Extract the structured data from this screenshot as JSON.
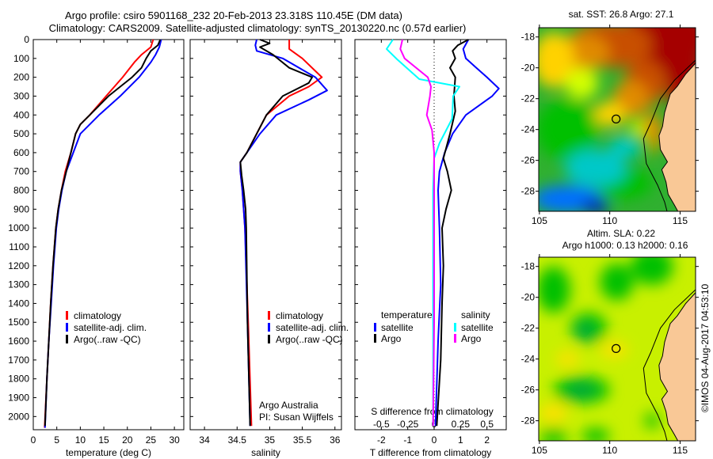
{
  "header": {
    "line1": "Argo profile: csiro 5901168_232 20-Feb-2013 23.318S 110.45E (DM data)",
    "line2": "Climatology: CARS2009. Satellite-adjusted climatology: synTS_20130220.nc (0.57d earlier)"
  },
  "colors": {
    "climatology": "#ff0000",
    "satellite": "#0000ff",
    "argo": "#000000",
    "sal_satellite": "#00ffff",
    "sal_argo": "#ff00ff",
    "land": "#f9c896"
  },
  "chart_data": [
    {
      "type": "line",
      "name": "temperature-profile",
      "xlabel": "temperature (deg C)",
      "ylabel": "",
      "xlim": [
        0,
        32
      ],
      "ylim": [
        2070,
        0
      ],
      "xticks": [
        0,
        5,
        10,
        15,
        20,
        25,
        30
      ],
      "yticks": [
        0,
        100,
        200,
        300,
        400,
        500,
        600,
        700,
        800,
        900,
        1000,
        1100,
        1200,
        1300,
        1400,
        1500,
        1600,
        1700,
        1800,
        1900,
        2000
      ],
      "legend": [
        "climatology",
        "satellite-adj. clim.",
        "Argo(..raw -QC)"
      ],
      "series": [
        {
          "name": "climatology",
          "color": "#ff0000",
          "points": [
            [
              0,
              25.5
            ],
            [
              40,
              25
            ],
            [
              80,
              23
            ],
            [
              120,
              21.5
            ],
            [
              200,
              19
            ],
            [
              300,
              15.5
            ],
            [
              400,
              12
            ],
            [
              450,
              10
            ],
            [
              500,
              9
            ],
            [
              600,
              8
            ],
            [
              700,
              6.8
            ],
            [
              800,
              6
            ],
            [
              900,
              5.3
            ],
            [
              1000,
              4.8
            ],
            [
              1200,
              4.2
            ],
            [
              1400,
              3.7
            ],
            [
              1600,
              3.3
            ],
            [
              1800,
              2.9
            ],
            [
              2060,
              2.4
            ]
          ]
        },
        {
          "name": "satellite-adj. clim.",
          "color": "#0000ff",
          "points": [
            [
              0,
              27.2
            ],
            [
              40,
              26.8
            ],
            [
              80,
              26
            ],
            [
              120,
              25
            ],
            [
              200,
              22.5
            ],
            [
              300,
              18.5
            ],
            [
              400,
              14
            ],
            [
              450,
              12
            ],
            [
              500,
              10
            ],
            [
              600,
              8.5
            ],
            [
              700,
              7
            ],
            [
              800,
              6.1
            ],
            [
              900,
              5.4
            ],
            [
              1000,
              4.9
            ],
            [
              1200,
              4.3
            ],
            [
              1400,
              3.8
            ],
            [
              1600,
              3.3
            ],
            [
              1800,
              2.9
            ],
            [
              2060,
              2.5
            ]
          ]
        },
        {
          "name": "Argo(..raw -QC)",
          "color": "#000000",
          "points": [
            [
              0,
              27
            ],
            [
              30,
              26.5
            ],
            [
              60,
              25
            ],
            [
              100,
              24
            ],
            [
              150,
              23
            ],
            [
              200,
              21
            ],
            [
              250,
              18.5
            ],
            [
              300,
              16
            ],
            [
              350,
              14
            ],
            [
              400,
              12
            ],
            [
              450,
              10
            ],
            [
              500,
              9
            ],
            [
              600,
              8
            ],
            [
              700,
              7
            ],
            [
              800,
              6
            ],
            [
              900,
              5.3
            ],
            [
              1000,
              4.8
            ],
            [
              1200,
              4.2
            ],
            [
              1400,
              3.7
            ],
            [
              1600,
              3.3
            ],
            [
              1800,
              2.9
            ],
            [
              2050,
              2.5
            ]
          ]
        }
      ]
    },
    {
      "type": "line",
      "name": "salinity-profile",
      "xlabel": "salinity",
      "xlim": [
        33.78,
        36.1
      ],
      "ylim": [
        2070,
        0
      ],
      "xticks": [
        34,
        34.5,
        35,
        35.5,
        36
      ],
      "legend": [
        "climatology",
        "satellite-adj. clim.",
        "Argo(..raw -QC)"
      ],
      "annotations": [
        "Argo Australia",
        "PI: Susan Wijffels"
      ],
      "series": [
        {
          "name": "climatology",
          "color": "#ff0000",
          "points": [
            [
              0,
              35.3
            ],
            [
              50,
              35.3
            ],
            [
              100,
              35.5
            ],
            [
              200,
              35.8
            ],
            [
              250,
              35.6
            ],
            [
              300,
              35.3
            ],
            [
              400,
              34.95
            ],
            [
              500,
              34.8
            ],
            [
              600,
              34.65
            ],
            [
              650,
              34.55
            ],
            [
              700,
              34.55
            ],
            [
              800,
              34.58
            ],
            [
              1000,
              34.62
            ],
            [
              1500,
              34.67
            ],
            [
              2050,
              34.72
            ]
          ]
        },
        {
          "name": "satellite-adj. clim.",
          "color": "#0000ff",
          "points": [
            [
              0,
              34.8
            ],
            [
              30,
              34.78
            ],
            [
              60,
              34.8
            ],
            [
              100,
              35.2
            ],
            [
              200,
              35.7
            ],
            [
              270,
              35.88
            ],
            [
              320,
              35.6
            ],
            [
              400,
              35.1
            ],
            [
              500,
              34.85
            ],
            [
              600,
              34.65
            ],
            [
              650,
              34.55
            ],
            [
              700,
              34.55
            ],
            [
              800,
              34.58
            ],
            [
              1000,
              34.62
            ],
            [
              1500,
              34.66
            ],
            [
              2050,
              34.7
            ]
          ]
        },
        {
          "name": "Argo(..raw -QC)",
          "color": "#000000",
          "points": [
            [
              0,
              34.85
            ],
            [
              20,
              35.0
            ],
            [
              40,
              34.85
            ],
            [
              80,
              35.05
            ],
            [
              150,
              35.3
            ],
            [
              200,
              35.65
            ],
            [
              230,
              35.6
            ],
            [
              300,
              35.2
            ],
            [
              400,
              34.95
            ],
            [
              500,
              34.8
            ],
            [
              600,
              34.65
            ],
            [
              650,
              34.55
            ],
            [
              720,
              34.57
            ],
            [
              800,
              34.6
            ],
            [
              900,
              34.63
            ],
            [
              1000,
              34.64
            ],
            [
              1500,
              34.66
            ],
            [
              2050,
              34.7
            ]
          ]
        }
      ]
    },
    {
      "type": "line",
      "name": "difference-profile",
      "xlabel": "T difference from climatology",
      "x2label": "S difference from climatology",
      "xlim": [
        -3.0,
        2.73
      ],
      "x2lim": [
        -0.75,
        0.6825
      ],
      "ylim": [
        2070,
        0
      ],
      "xticks": [
        -2,
        -1,
        0,
        1,
        2
      ],
      "x2ticks": [
        -0.5,
        -0.25,
        0,
        0.25,
        0.5
      ],
      "x2ticklabels": [
        "-0.5",
        "-0.25",
        "0",
        "0.25",
        "0.5"
      ],
      "legend_temperature": {
        "title": "temperature",
        "items": [
          "satellite",
          "Argo"
        ]
      },
      "legend_salinity": {
        "title": "salinity",
        "items": [
          "satellite",
          "Argo"
        ]
      },
      "series": [
        {
          "name": "T satellite",
          "axis": "T",
          "color": "#0000ff",
          "points": [
            [
              0,
              1.3
            ],
            [
              50,
              1.1
            ],
            [
              100,
              1.2
            ],
            [
              150,
              1.6
            ],
            [
              200,
              2.0
            ],
            [
              260,
              2.45
            ],
            [
              300,
              2.2
            ],
            [
              400,
              1.2
            ],
            [
              500,
              0.7
            ],
            [
              600,
              0.4
            ],
            [
              700,
              0.2
            ],
            [
              800,
              0.15
            ],
            [
              1000,
              0.2
            ],
            [
              1300,
              0.25
            ],
            [
              1600,
              0.15
            ],
            [
              2050,
              0.05
            ]
          ]
        },
        {
          "name": "T Argo",
          "axis": "T",
          "color": "#000000",
          "points": [
            [
              0,
              1.3
            ],
            [
              30,
              0.9
            ],
            [
              60,
              0.7
            ],
            [
              100,
              0.8
            ],
            [
              150,
              0.6
            ],
            [
              200,
              0.8
            ],
            [
              300,
              0.75
            ],
            [
              380,
              0.8
            ],
            [
              500,
              0.6
            ],
            [
              630,
              0.35
            ],
            [
              700,
              0.5
            ],
            [
              800,
              0.65
            ],
            [
              900,
              0.45
            ],
            [
              1000,
              0.3
            ],
            [
              1200,
              0.35
            ],
            [
              1400,
              0.3
            ],
            [
              1700,
              0.25
            ],
            [
              2050,
              0.1
            ]
          ]
        },
        {
          "name": "S satellite",
          "axis": "S",
          "color": "#00ffff",
          "points": [
            [
              0,
              -0.39
            ],
            [
              50,
              -0.45
            ],
            [
              105,
              -0.35
            ],
            [
              210,
              -0.14
            ],
            [
              250,
              0.24
            ],
            [
              300,
              0.18
            ],
            [
              420,
              0.17
            ],
            [
              550,
              0.05
            ],
            [
              630,
              0
            ],
            [
              800,
              -0.01
            ],
            [
              1200,
              -0.01
            ],
            [
              2050,
              -0.01
            ]
          ]
        },
        {
          "name": "S Argo",
          "axis": "S",
          "color": "#ff00ff",
          "points": [
            [
              0,
              -0.3
            ],
            [
              50,
              -0.32
            ],
            [
              100,
              -0.28
            ],
            [
              200,
              -0.06
            ],
            [
              250,
              -0.03
            ],
            [
              300,
              -0.04
            ],
            [
              400,
              -0.07
            ],
            [
              480,
              -0.02
            ],
            [
              600,
              0
            ],
            [
              800,
              0.0
            ],
            [
              1500,
              0
            ],
            [
              2050,
              -0.01
            ]
          ]
        }
      ]
    }
  ],
  "maps": [
    {
      "name": "sst-map",
      "title": "sat. SST: 26.8 Argo: 27.1",
      "lon_ticks": [
        105,
        110,
        115
      ],
      "lat_ticks": [
        -18,
        -20,
        -22,
        -24,
        -26,
        -28
      ],
      "lon_range": [
        104.95,
        116.1
      ],
      "lat_range": [
        -29.3,
        -17.4
      ],
      "float_position": {
        "lon": 110.45,
        "lat": -23.318
      }
    },
    {
      "name": "sla-map",
      "title": "Altim. SLA: 0.22",
      "subtitle": "Argo h1000: 0.13 h2000: 0.16",
      "lon_ticks": [
        105,
        110,
        115
      ],
      "lat_ticks": [
        -18,
        -20,
        -22,
        -24,
        -26,
        -28
      ],
      "lon_range": [
        104.95,
        116.1
      ],
      "lat_range": [
        -29.3,
        -17.4
      ],
      "float_position": {
        "lon": 110.45,
        "lat": -23.318
      },
      "credit": "©IMOS 04-Aug-2017 04:53:10"
    }
  ]
}
